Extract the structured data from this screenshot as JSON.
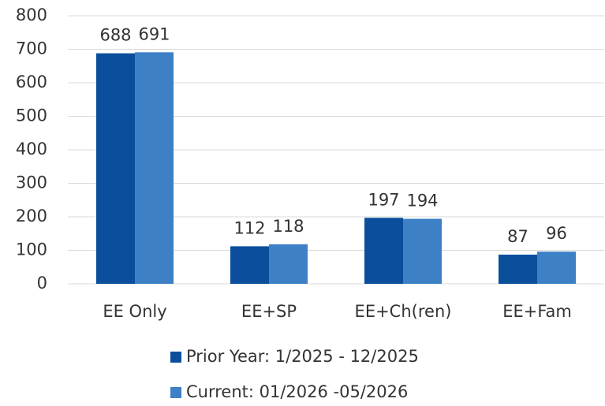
{
  "chart_data": {
    "type": "bar",
    "categories": [
      "EE Only",
      "EE+SP",
      "EE+Ch(ren)",
      "EE+Fam"
    ],
    "series": [
      {
        "name": "Prior Year: 1/2025 - 12/2025",
        "color": "#0b4f9c",
        "values": [
          688,
          112,
          197,
          87
        ]
      },
      {
        "name": "Current: 01/2026 -05/2026",
        "color": "#3d80c6",
        "values": [
          691,
          118,
          194,
          96
        ]
      }
    ],
    "ylim": [
      0,
      800
    ],
    "yticks": [
      0,
      100,
      200,
      300,
      400,
      500,
      600,
      700,
      800
    ],
    "grid": true,
    "legend": "bottom"
  }
}
